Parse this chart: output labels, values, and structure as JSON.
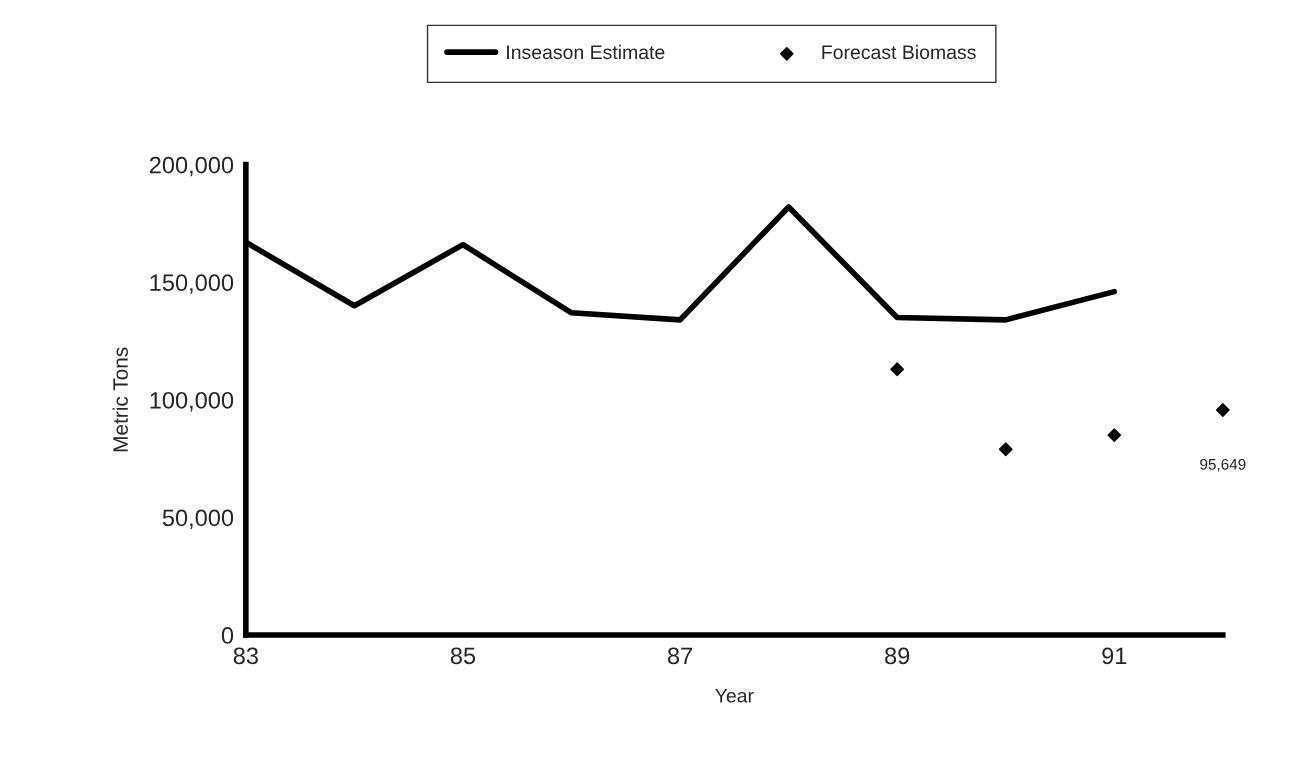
{
  "chart_data": {
    "type": "line",
    "xlabel": "Year",
    "ylabel": "Metric Tons",
    "xlim": [
      83,
      92
    ],
    "xticks": [
      83,
      85,
      87,
      89,
      91
    ],
    "ylim": [
      0,
      200000
    ],
    "yticks": [
      {
        "value": 0,
        "label": "0"
      },
      {
        "value": 50000,
        "label": "50,000"
      },
      {
        "value": 100000,
        "label": "100,000"
      },
      {
        "value": 150000,
        "label": "150,000"
      },
      {
        "value": 200000,
        "label": "200,000"
      }
    ],
    "grid": false,
    "legend": "top",
    "series": [
      {
        "name": "Inseason Estimate",
        "color": "#000000",
        "x": [
          83,
          84,
          85,
          86,
          87,
          88,
          89,
          90,
          91
        ],
        "values": [
          167000,
          140000,
          166000,
          137000,
          134000,
          182000,
          135000,
          134000,
          146000
        ]
      },
      {
        "name": "Forecast Biomass",
        "type": "scatter",
        "marker": "diamond",
        "color": "#000000",
        "x": [
          89,
          90,
          91,
          92
        ],
        "values": [
          113000,
          79000,
          85000,
          95649
        ],
        "value_labels": [
          null,
          null,
          null,
          "95,649"
        ]
      }
    ]
  }
}
